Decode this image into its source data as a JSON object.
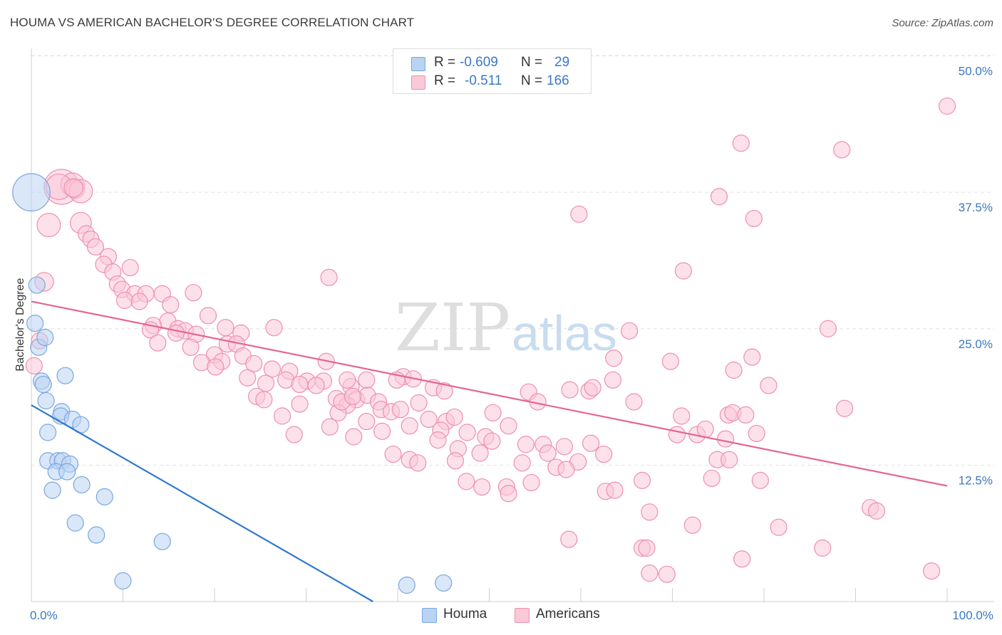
{
  "header": {
    "title": "HOUMA VS AMERICAN BACHELOR'S DEGREE CORRELATION CHART",
    "source": "Source: ZipAtlas.com"
  },
  "legend": {
    "rows": [
      {
        "r_label": "R =",
        "r_value": "-0.609",
        "n_label": "N =",
        "n_value": "29"
      },
      {
        "r_label": "R =",
        "r_value": "-0.511",
        "n_label": "N =",
        "n_value": "166"
      }
    ],
    "series_labels": [
      "Houma",
      "Americans"
    ]
  },
  "colors": {
    "houma_fill": "#b9d3f2",
    "houma_stroke": "#7aa7df",
    "houma_line": "#2f78d2",
    "americans_fill": "#f9c9d8",
    "americans_stroke": "#ef8fad",
    "americans_line": "#e5668f",
    "axis_text": "#3a78c4",
    "grid": "#e2e2e2"
  },
  "watermark": {
    "part1": "ZIP",
    "part2": "atlas"
  },
  "chart_data": {
    "type": "scatter",
    "title": "HOUMA VS AMERICAN BACHELOR'S DEGREE CORRELATION CHART",
    "xlabel": "",
    "ylabel": "Bachelor's Degree",
    "xlim": [
      0,
      100
    ],
    "ylim": [
      0,
      52
    ],
    "x_tick_labels": [
      {
        "value": 0,
        "label": "0.0%"
      },
      {
        "value": 100,
        "label": "100.0%"
      }
    ],
    "y_ticks": [
      {
        "value": 12.5,
        "label": "12.5%"
      },
      {
        "value": 25,
        "label": "25.0%"
      },
      {
        "value": 37.5,
        "label": "37.5%"
      },
      {
        "value": 50,
        "label": "50.0%"
      }
    ],
    "x_minor_ticks": [
      10,
      20,
      30,
      40,
      50,
      60,
      70,
      80,
      90,
      100
    ],
    "series": [
      {
        "name": "Houma",
        "r": -0.609,
        "n": 29,
        "trend": {
          "x": [
            0,
            37.3
          ],
          "y": [
            18.0,
            0
          ]
        },
        "points": [
          [
            0.0,
            37.5,
            3.2
          ],
          [
            0.6,
            29.0,
            1.4
          ],
          [
            0.4,
            25.5,
            1.4
          ],
          [
            0.8,
            23.3,
            1.4
          ],
          [
            1.5,
            24.2,
            1.4
          ],
          [
            1.1,
            20.2,
            1.4
          ],
          [
            1.3,
            19.9,
            1.4
          ],
          [
            3.7,
            20.7,
            1.4
          ],
          [
            1.6,
            18.4,
            1.4
          ],
          [
            3.3,
            17.4,
            1.4
          ],
          [
            3.2,
            17.0,
            1.4
          ],
          [
            4.5,
            16.7,
            1.4
          ],
          [
            5.4,
            16.2,
            1.4
          ],
          [
            1.8,
            15.5,
            1.4
          ],
          [
            1.8,
            12.9,
            1.4
          ],
          [
            2.9,
            12.9,
            1.4
          ],
          [
            3.4,
            12.9,
            1.4
          ],
          [
            4.2,
            12.6,
            1.4
          ],
          [
            2.7,
            11.9,
            1.4
          ],
          [
            3.9,
            11.9,
            1.4
          ],
          [
            2.3,
            10.2,
            1.4
          ],
          [
            5.5,
            10.7,
            1.4
          ],
          [
            8.0,
            9.6,
            1.4
          ],
          [
            4.8,
            7.2,
            1.4
          ],
          [
            7.1,
            6.1,
            1.4
          ],
          [
            14.3,
            5.5,
            1.4
          ],
          [
            10.0,
            1.9,
            1.4
          ],
          [
            41.0,
            1.5,
            1.4
          ],
          [
            45.0,
            1.7,
            1.4
          ]
        ]
      },
      {
        "name": "Americans",
        "r": -0.511,
        "n": 166,
        "trend": {
          "x": [
            0,
            100
          ],
          "y": [
            27.5,
            10.6
          ]
        },
        "points": [
          [
            3.3,
            38.0,
            3.0
          ],
          [
            4.5,
            38.2,
            2.0
          ],
          [
            3.0,
            38.0,
            2.2
          ],
          [
            4.8,
            37.8,
            1.6
          ],
          [
            5.4,
            37.6,
            2.0
          ],
          [
            4.6,
            37.9,
            1.6
          ],
          [
            1.9,
            34.5,
            2.0
          ],
          [
            5.4,
            34.7,
            1.8
          ],
          [
            6.0,
            33.7,
            1.4
          ],
          [
            6.5,
            33.2,
            1.4
          ],
          [
            7.0,
            32.5,
            1.4
          ],
          [
            8.4,
            31.6,
            1.4
          ],
          [
            7.9,
            30.9,
            1.4
          ],
          [
            10.8,
            30.6,
            1.4
          ],
          [
            8.9,
            30.2,
            1.4
          ],
          [
            9.4,
            29.1,
            1.4
          ],
          [
            9.9,
            28.6,
            1.4
          ],
          [
            11.3,
            28.2,
            1.4
          ],
          [
            12.5,
            28.2,
            1.4
          ],
          [
            14.3,
            28.2,
            1.4
          ],
          [
            17.7,
            28.3,
            1.4
          ],
          [
            10.2,
            27.6,
            1.4
          ],
          [
            11.8,
            27.5,
            1.4
          ],
          [
            15.2,
            27.2,
            1.4
          ],
          [
            1.4,
            29.3,
            1.6
          ],
          [
            0.9,
            23.9,
            1.4
          ],
          [
            0.3,
            21.6,
            1.4
          ],
          [
            19.3,
            26.2,
            1.4
          ],
          [
            14.9,
            25.7,
            1.4
          ],
          [
            13.3,
            25.3,
            1.4
          ],
          [
            13.0,
            24.9,
            1.4
          ],
          [
            16.0,
            25.0,
            1.4
          ],
          [
            16.8,
            24.8,
            1.4
          ],
          [
            18.0,
            24.5,
            1.4
          ],
          [
            21.2,
            25.1,
            1.4
          ],
          [
            22.9,
            24.6,
            1.4
          ],
          [
            26.5,
            25.1,
            1.4
          ],
          [
            15.8,
            24.6,
            1.4
          ],
          [
            13.8,
            23.7,
            1.4
          ],
          [
            21.4,
            23.6,
            1.4
          ],
          [
            22.4,
            23.6,
            1.4
          ],
          [
            17.4,
            23.3,
            1.4
          ],
          [
            20.0,
            22.6,
            1.4
          ],
          [
            23.1,
            22.5,
            1.4
          ],
          [
            18.6,
            21.9,
            1.4
          ],
          [
            20.8,
            22.0,
            1.4
          ],
          [
            20.1,
            21.5,
            1.4
          ],
          [
            24.3,
            21.8,
            1.4
          ],
          [
            26.3,
            21.3,
            1.4
          ],
          [
            28.2,
            21.1,
            1.4
          ],
          [
            32.2,
            22.0,
            1.4
          ],
          [
            23.6,
            20.5,
            1.4
          ],
          [
            27.8,
            20.3,
            1.4
          ],
          [
            25.6,
            20.0,
            1.4
          ],
          [
            30.1,
            20.2,
            1.4
          ],
          [
            31.9,
            20.2,
            1.4
          ],
          [
            29.3,
            19.9,
            1.4
          ],
          [
            31.1,
            19.8,
            1.4
          ],
          [
            34.9,
            19.7,
            1.4
          ],
          [
            24.6,
            18.8,
            1.4
          ],
          [
            25.4,
            18.5,
            1.4
          ],
          [
            33.3,
            18.6,
            1.4
          ],
          [
            35.5,
            18.5,
            1.4
          ],
          [
            36.7,
            18.9,
            1.4
          ],
          [
            37.9,
            18.3,
            1.4
          ],
          [
            42.3,
            18.2,
            1.4
          ],
          [
            34.5,
            18.0,
            1.4
          ],
          [
            29.3,
            18.1,
            1.4
          ],
          [
            33.5,
            17.3,
            1.4
          ],
          [
            38.2,
            17.6,
            1.4
          ],
          [
            39.3,
            17.4,
            1.4
          ],
          [
            40.3,
            17.6,
            1.4
          ],
          [
            27.4,
            17.0,
            1.4
          ],
          [
            32.6,
            16.0,
            1.4
          ],
          [
            36.6,
            16.5,
            1.4
          ],
          [
            43.4,
            16.7,
            1.4
          ],
          [
            45.3,
            16.5,
            1.4
          ],
          [
            46.2,
            16.9,
            1.4
          ],
          [
            50.4,
            17.3,
            1.4
          ],
          [
            41.3,
            16.1,
            1.4
          ],
          [
            28.7,
            15.3,
            1.4
          ],
          [
            35.2,
            15.1,
            1.4
          ],
          [
            38.3,
            15.6,
            1.4
          ],
          [
            44.7,
            15.7,
            1.4
          ],
          [
            47.6,
            15.5,
            1.4
          ],
          [
            49.6,
            15.1,
            1.4
          ],
          [
            52.1,
            16.1,
            1.4
          ],
          [
            44.4,
            14.8,
            1.4
          ],
          [
            50.3,
            14.7,
            1.4
          ],
          [
            46.6,
            14.0,
            1.4
          ],
          [
            54.0,
            14.4,
            1.4
          ],
          [
            55.9,
            14.4,
            1.4
          ],
          [
            58.2,
            14.2,
            1.4
          ],
          [
            61.1,
            14.5,
            1.4
          ],
          [
            49.0,
            13.6,
            1.4
          ],
          [
            56.4,
            13.6,
            1.4
          ],
          [
            62.5,
            13.5,
            1.4
          ],
          [
            39.5,
            13.5,
            1.4
          ],
          [
            41.3,
            13.0,
            1.4
          ],
          [
            42.2,
            12.7,
            1.4
          ],
          [
            46.3,
            12.9,
            1.4
          ],
          [
            53.6,
            12.7,
            1.4
          ],
          [
            59.7,
            12.8,
            1.4
          ],
          [
            57.3,
            12.3,
            1.4
          ],
          [
            58.4,
            12.1,
            1.4
          ],
          [
            47.5,
            11.0,
            1.4
          ],
          [
            49.2,
            10.5,
            1.4
          ],
          [
            51.9,
            10.5,
            1.4
          ],
          [
            52.1,
            9.9,
            1.4
          ],
          [
            54.6,
            10.9,
            1.4
          ],
          [
            62.7,
            10.1,
            1.4
          ],
          [
            63.7,
            10.2,
            1.4
          ],
          [
            66.7,
            11.1,
            1.4
          ],
          [
            67.5,
            8.2,
            1.4
          ],
          [
            58.7,
            5.7,
            1.4
          ],
          [
            66.7,
            4.9,
            1.4
          ],
          [
            67.2,
            4.9,
            1.4
          ],
          [
            67.5,
            2.6,
            1.4
          ],
          [
            69.4,
            2.5,
            1.4
          ],
          [
            69.8,
            22.0,
            1.4
          ],
          [
            70.5,
            15.3,
            1.4
          ],
          [
            71.0,
            17.0,
            1.4
          ],
          [
            72.2,
            7.0,
            1.4
          ],
          [
            71.2,
            30.3,
            1.4
          ],
          [
            72.7,
            15.3,
            1.4
          ],
          [
            73.6,
            15.8,
            1.4
          ],
          [
            74.3,
            11.3,
            1.4
          ],
          [
            74.9,
            13.0,
            1.4
          ],
          [
            75.1,
            37.1,
            1.4
          ],
          [
            75.8,
            14.9,
            1.4
          ],
          [
            76.2,
            13.0,
            1.4
          ],
          [
            76.7,
            21.2,
            1.4
          ],
          [
            76.1,
            17.1,
            1.4
          ],
          [
            76.6,
            17.3,
            1.4
          ],
          [
            77.5,
            42.0,
            1.4
          ],
          [
            78.0,
            17.1,
            1.4
          ],
          [
            78.7,
            22.4,
            1.4
          ],
          [
            78.9,
            35.1,
            1.4
          ],
          [
            79.2,
            15.4,
            1.4
          ],
          [
            79.6,
            11.1,
            1.4
          ],
          [
            77.6,
            3.9,
            1.4
          ],
          [
            80.5,
            19.8,
            1.4
          ],
          [
            81.6,
            6.8,
            1.4
          ],
          [
            86.4,
            4.9,
            1.4
          ],
          [
            87.0,
            25.0,
            1.4
          ],
          [
            88.5,
            41.4,
            1.4
          ],
          [
            88.8,
            17.7,
            1.4
          ],
          [
            91.6,
            8.6,
            1.4
          ],
          [
            92.3,
            8.3,
            1.4
          ],
          [
            98.3,
            2.8,
            1.4
          ],
          [
            100.0,
            45.4,
            1.4
          ],
          [
            59.8,
            35.5,
            1.4
          ],
          [
            63.6,
            22.3,
            1.4
          ],
          [
            63.5,
            20.3,
            1.4
          ],
          [
            65.3,
            24.8,
            1.4
          ],
          [
            58.8,
            19.4,
            1.4
          ],
          [
            60.9,
            19.3,
            1.4
          ],
          [
            65.8,
            18.3,
            1.4
          ],
          [
            54.3,
            19.2,
            1.4
          ],
          [
            55.3,
            18.3,
            1.4
          ],
          [
            40.6,
            20.6,
            1.4
          ],
          [
            41.7,
            20.4,
            1.4
          ],
          [
            39.9,
            20.3,
            1.4
          ],
          [
            34.5,
            20.3,
            1.4
          ],
          [
            36.6,
            20.3,
            1.4
          ],
          [
            33.9,
            18.3,
            1.4
          ],
          [
            35.1,
            18.8,
            1.4
          ],
          [
            32.5,
            29.7,
            1.4
          ],
          [
            61.3,
            19.6,
            1.4
          ],
          [
            43.9,
            19.6,
            1.4
          ],
          [
            45.1,
            19.3,
            1.4
          ]
        ]
      }
    ]
  }
}
